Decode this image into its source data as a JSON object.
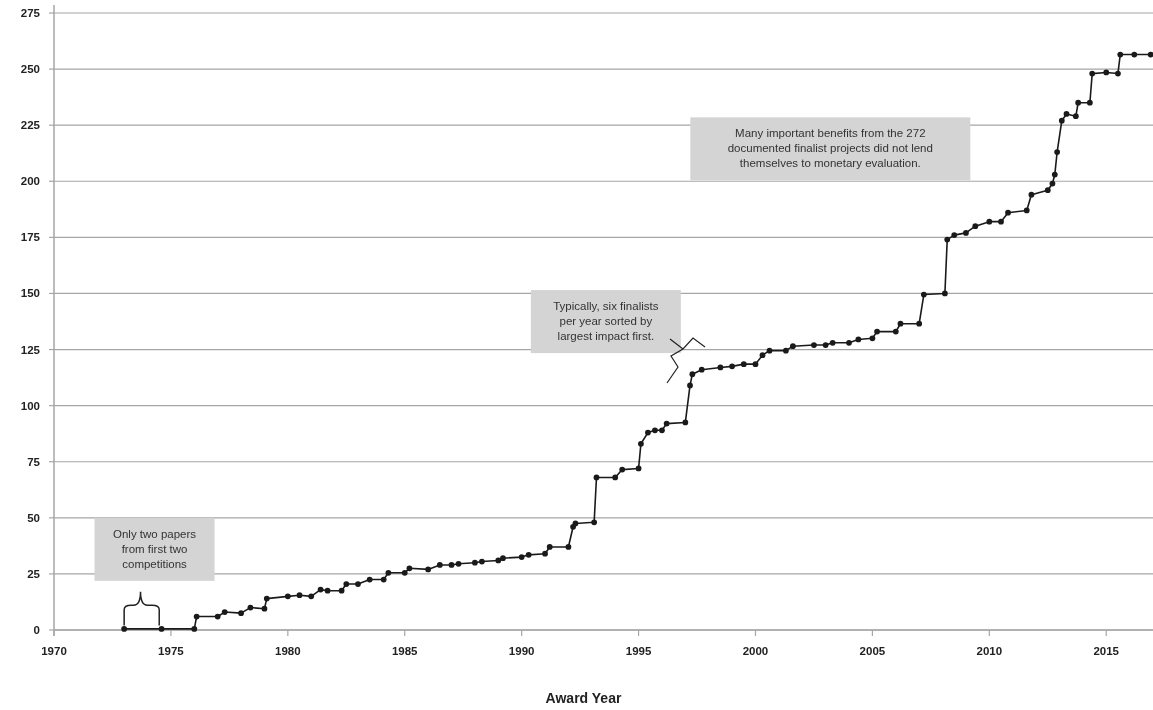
{
  "chart_data": {
    "type": "line",
    "xlabel": "Award Year",
    "x": [
      1973.0,
      1974.6,
      1976.0,
      1976.1,
      1977.0,
      1977.3,
      1978.0,
      1978.4,
      1979.0,
      1979.1,
      1980.0,
      1980.5,
      1981.0,
      1981.4,
      1981.7,
      1982.3,
      1982.5,
      1983.0,
      1983.5,
      1984.1,
      1984.3,
      1985.0,
      1985.2,
      1986.0,
      1986.5,
      1987.0,
      1987.3,
      1988.0,
      1988.3,
      1989.0,
      1989.2,
      1990.0,
      1990.3,
      1991.0,
      1991.2,
      1992.0,
      1992.2,
      1992.3,
      1993.1,
      1993.2,
      1994.0,
      1994.3,
      1995.0,
      1995.1,
      1995.4,
      1995.7,
      1996.0,
      1996.2,
      1997.0,
      1997.2,
      1997.3,
      1997.7,
      1998.5,
      1999.0,
      1999.5,
      2000.0,
      2000.3,
      2000.6,
      2001.3,
      2001.6,
      2002.5,
      2003.0,
      2003.3,
      2004.0,
      2004.4,
      2005.0,
      2005.2,
      2006.0,
      2006.2,
      2007.0,
      2007.2,
      2008.1,
      2008.2,
      2008.5,
      2009.0,
      2009.4,
      2010.0,
      2010.5,
      2010.8,
      2011.6,
      2011.8,
      2012.5,
      2012.7,
      2012.8,
      2012.9,
      2013.1,
      2013.3,
      2013.7,
      2013.8,
      2014.3,
      2014.4,
      2015.0,
      2015.5,
      2015.6,
      2016.2,
      2016.9
    ],
    "series": [
      {
        "color": "#1a1a1a",
        "values": [
          0.5,
          0.5,
          0.5,
          6,
          6,
          8,
          7.5,
          10,
          9.5,
          14,
          15,
          15.5,
          15,
          18,
          17.5,
          17.5,
          20.5,
          20.5,
          22.5,
          22.5,
          25.5,
          25.5,
          27.5,
          27,
          29,
          29,
          29.5,
          30,
          30.5,
          31,
          32,
          32.5,
          33.5,
          34,
          37,
          37,
          46,
          47.5,
          48,
          68,
          68,
          71.5,
          72,
          83,
          88,
          89,
          89,
          92,
          92.5,
          109,
          114,
          116,
          117,
          117.5,
          118.5,
          118.5,
          122.5,
          124.5,
          124.5,
          126.5,
          127,
          127,
          128,
          128,
          129.5,
          130,
          133,
          133,
          136.5,
          136.5,
          149.5,
          150,
          174,
          176,
          177,
          180,
          182,
          182,
          186,
          187,
          194,
          196,
          199,
          203,
          213,
          227,
          230,
          229,
          235,
          235,
          248,
          248.5,
          248,
          256.5,
          256.5,
          256.5
        ]
      }
    ],
    "xlim": [
      1970,
      2017
    ],
    "xticks": [
      1970,
      1975,
      1980,
      1985,
      1990,
      1995,
      2000,
      2005,
      2010,
      2015
    ],
    "ylim": [
      0,
      275
    ],
    "yticks": [
      0,
      25,
      50,
      75,
      100,
      125,
      150,
      175,
      200,
      225,
      250,
      275
    ],
    "grid": "y",
    "marker": "circle",
    "line_style": "solid",
    "annotations": [
      "Only two papers from first two competitions",
      "Typically, six finalists per year sorted by largest impact first.",
      "Many important benefits from the 272 documented finalist projects did not lend themselves to monetary evaluation."
    ]
  }
}
